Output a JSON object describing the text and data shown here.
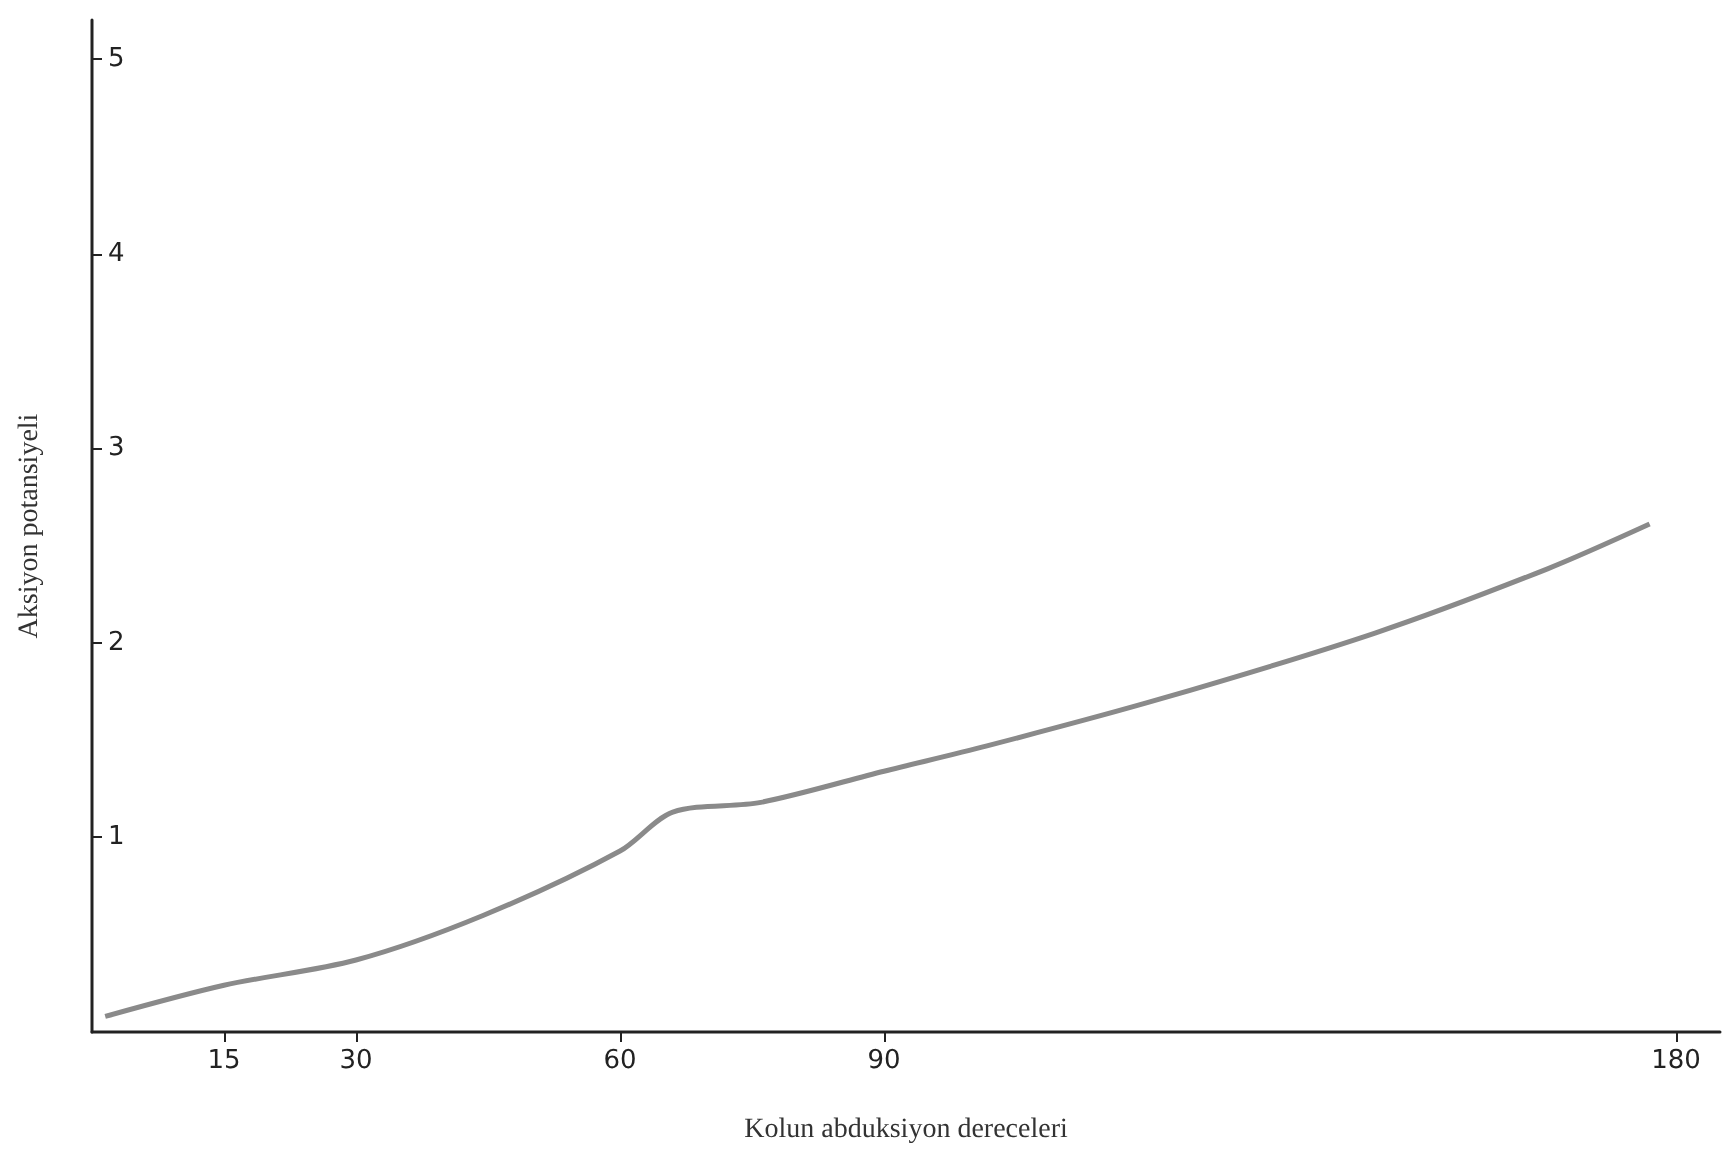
{
  "chart_data": {
    "type": "line",
    "xlabel": "Kolun abduksiyon dereceleri",
    "ylabel": "Aksiyon potansiyeli",
    "x": [
      1.5,
      15,
      30,
      44.5,
      60,
      66,
      76,
      90,
      101.7,
      121.3,
      145.8,
      165.4,
      177
    ],
    "series": [
      {
        "color": "#8a8a8a",
        "values": [
          0.08,
          0.24,
          0.37,
          0.6,
          0.93,
          1.13,
          1.18,
          1.34,
          1.47,
          1.71,
          2.05,
          2.38,
          2.61
        ]
      }
    ],
    "xlim": [
      0,
      185
    ],
    "ylim": [
      0,
      5.2
    ],
    "xticks": [
      15,
      30,
      60,
      90,
      180
    ],
    "yticks": [
      1,
      2,
      3,
      4,
      5
    ],
    "grid": false,
    "marker": "none",
    "line_style": "solid"
  }
}
